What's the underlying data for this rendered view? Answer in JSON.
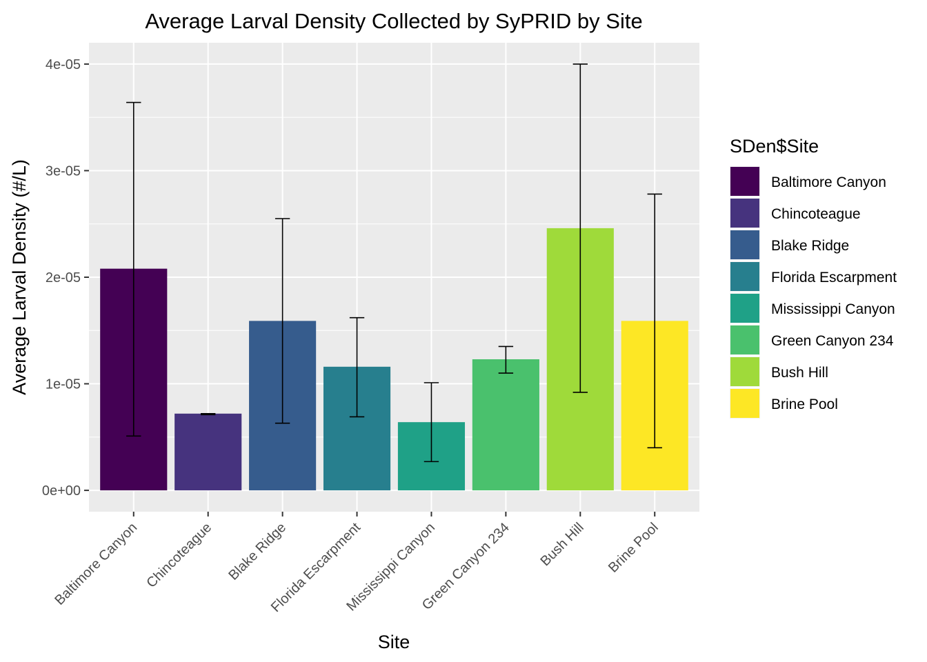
{
  "chart_data": {
    "type": "bar",
    "title": "Average Larval Density Collected by SyPRID by Site",
    "xlabel": "Site",
    "ylabel": "Average Larval Density (#/L)",
    "ylim": [
      -2e-06,
      4.2e-05
    ],
    "y_ticks": [
      0,
      1e-05,
      2e-05,
      3e-05,
      4e-05
    ],
    "y_tick_labels": [
      "0e+00",
      "1e-05",
      "2e-05",
      "3e-05",
      "4e-05"
    ],
    "categories": [
      "Baltimore Canyon",
      "Chincoteague",
      "Blake Ridge",
      "Florida Escarpment",
      "Mississippi Canyon",
      "Green Canyon 234",
      "Bush Hill",
      "Brine Pool"
    ],
    "values": [
      2.08e-05,
      7.2e-06,
      1.59e-05,
      1.16e-05,
      6.4e-06,
      1.23e-05,
      2.46e-05,
      1.59e-05
    ],
    "error_low": [
      5.1e-06,
      7.1e-06,
      6.3e-06,
      6.9e-06,
      2.7e-06,
      1.1e-05,
      9.2e-06,
      4e-06
    ],
    "error_high": [
      3.64e-05,
      7.2e-06,
      2.55e-05,
      1.62e-05,
      1.01e-05,
      1.35e-05,
      4e-05,
      2.78e-05
    ],
    "colors": [
      "#440154",
      "#46337E",
      "#365C8D",
      "#277F8E",
      "#1FA187",
      "#4AC16D",
      "#9FDA3A",
      "#FDE725"
    ],
    "legend": {
      "title": "SDen$Site",
      "position": "right"
    },
    "grid": true
  }
}
